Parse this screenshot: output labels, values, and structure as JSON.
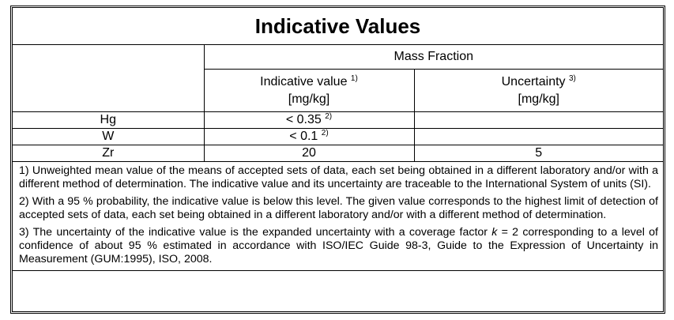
{
  "table": {
    "title": "Indicative Values",
    "group_header": "Mass Fraction",
    "columns": [
      {
        "name": "Indicative value",
        "note": "1)",
        "unit": "[mg/kg]"
      },
      {
        "name": "Uncertainty",
        "note": "3)",
        "unit": "[mg/kg]"
      }
    ],
    "rows": [
      {
        "element": "Hg",
        "indicative_value": "< 0.35",
        "note": "2)"
      },
      {
        "element": "W",
        "indicative_value": "< 0.1",
        "note": "2)"
      },
      {
        "element": "Zr",
        "indicative_value": "20",
        "uncertainty": "5"
      }
    ]
  },
  "footnotes": [
    "1) Unweighted mean value of the means of accepted sets of data, each set being obtained in a different laboratory and/or with a different method of determination. The indicative value and its uncertainty are traceable to the International System of units (SI).",
    "2) With a 95 % probability, the indicative value is below this level. The given value corresponds to the highest limit of detection of accepted sets of data, each set being obtained in a different laboratory and/or with a different method of determination.",
    [
      "3) The uncertainty of the indicative value is the expanded uncertainty with a coverage factor ",
      "k",
      " = 2 corresponding to a level of confidence of about 95 % estimated in accordance with ISO/IEC Guide 98-3, Guide to the Expression of Uncertainty in Measurement (GUM:1995), ISO, 2008."
    ]
  ]
}
